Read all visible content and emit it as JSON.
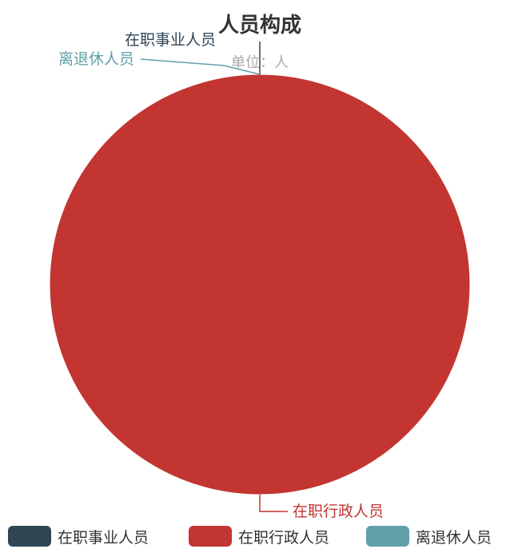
{
  "chart_data": {
    "type": "pie",
    "title": "人员构成",
    "subtitle": "单位：人",
    "categories": [
      "在职事业人员",
      "在职行政人员",
      "离退休人员"
    ],
    "values": [
      0,
      100,
      0
    ],
    "colors": [
      "#2f4554",
      "#c23531",
      "#61a0a8"
    ],
    "legend": {
      "position": "bottom",
      "items": [
        "在职事业人员",
        "在职行政人员",
        "离退休人员"
      ]
    }
  }
}
